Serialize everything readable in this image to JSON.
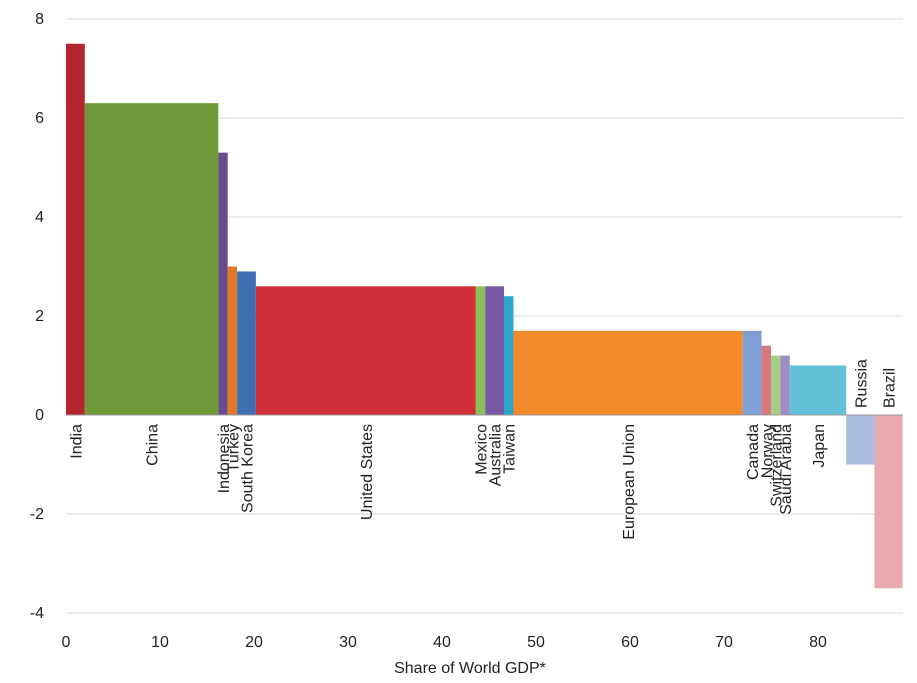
{
  "chart_data": {
    "type": "bar",
    "subtype": "variable-width",
    "xlabel": "Share of World GDP*",
    "ylabel": "",
    "title": "",
    "xlim": [
      0,
      89
    ],
    "ylim": [
      -4,
      8
    ],
    "xticks": [
      "0",
      "10",
      "20",
      "30",
      "40",
      "50",
      "60",
      "70",
      "80"
    ],
    "yticks": [
      "-4",
      "-2",
      "0",
      "2",
      "4",
      "6",
      "8"
    ],
    "grid": "horizontal",
    "bars": [
      {
        "label": "India",
        "x0": 0,
        "x1": 2,
        "value": 7.5,
        "color": "#b3262d"
      },
      {
        "label": "China",
        "x0": 2,
        "x1": 16.2,
        "value": 6.3,
        "color": "#6e9a3a"
      },
      {
        "label": "Indonesia",
        "x0": 16.2,
        "x1": 17.2,
        "value": 5.3,
        "color": "#6a4a8c"
      },
      {
        "label": "Turkey",
        "x0": 17.2,
        "x1": 18.2,
        "value": 3.0,
        "color": "#e0782a"
      },
      {
        "label": "South Korea",
        "x0": 18.2,
        "x1": 20.2,
        "value": 2.9,
        "color": "#3f6fb3"
      },
      {
        "label": "United States",
        "x0": 20.2,
        "x1": 43.6,
        "value": 2.6,
        "color": "#cf3038"
      },
      {
        "label": "Mexico",
        "x0": 43.6,
        "x1": 44.6,
        "value": 2.6,
        "color": "#8bbf58"
      },
      {
        "label": "Australia",
        "x0": 44.6,
        "x1": 46.6,
        "value": 2.6,
        "color": "#7a58a8"
      },
      {
        "label": "Taiwan",
        "x0": 46.6,
        "x1": 47.6,
        "value": 2.4,
        "color": "#29a6c8"
      },
      {
        "label": "European Union",
        "x0": 47.6,
        "x1": 72.0,
        "value": 1.7,
        "color": "#f28a2a"
      },
      {
        "label": "Canada",
        "x0": 72.0,
        "x1": 74.0,
        "value": 1.7,
        "color": "#7f9fd4"
      },
      {
        "label": "Norway",
        "x0": 74.0,
        "x1": 75.0,
        "value": 1.4,
        "color": "#d9777f"
      },
      {
        "label": "Switzerland",
        "x0": 75.0,
        "x1": 76.0,
        "value": 1.2,
        "color": "#a6cf85"
      },
      {
        "label": "Saudi Arabia",
        "x0": 76.0,
        "x1": 77.0,
        "value": 1.2,
        "color": "#a08cc4"
      },
      {
        "label": "Japan",
        "x0": 77.0,
        "x1": 83.0,
        "value": 1.0,
        "color": "#62c0d8"
      },
      {
        "label": "Russia",
        "x0": 83.0,
        "x1": 86.0,
        "value": -1.0,
        "color": "#a9bee0"
      },
      {
        "label": "Brazil",
        "x0": 86.0,
        "x1": 89.0,
        "value": -3.5,
        "color": "#e8aab0"
      }
    ]
  }
}
